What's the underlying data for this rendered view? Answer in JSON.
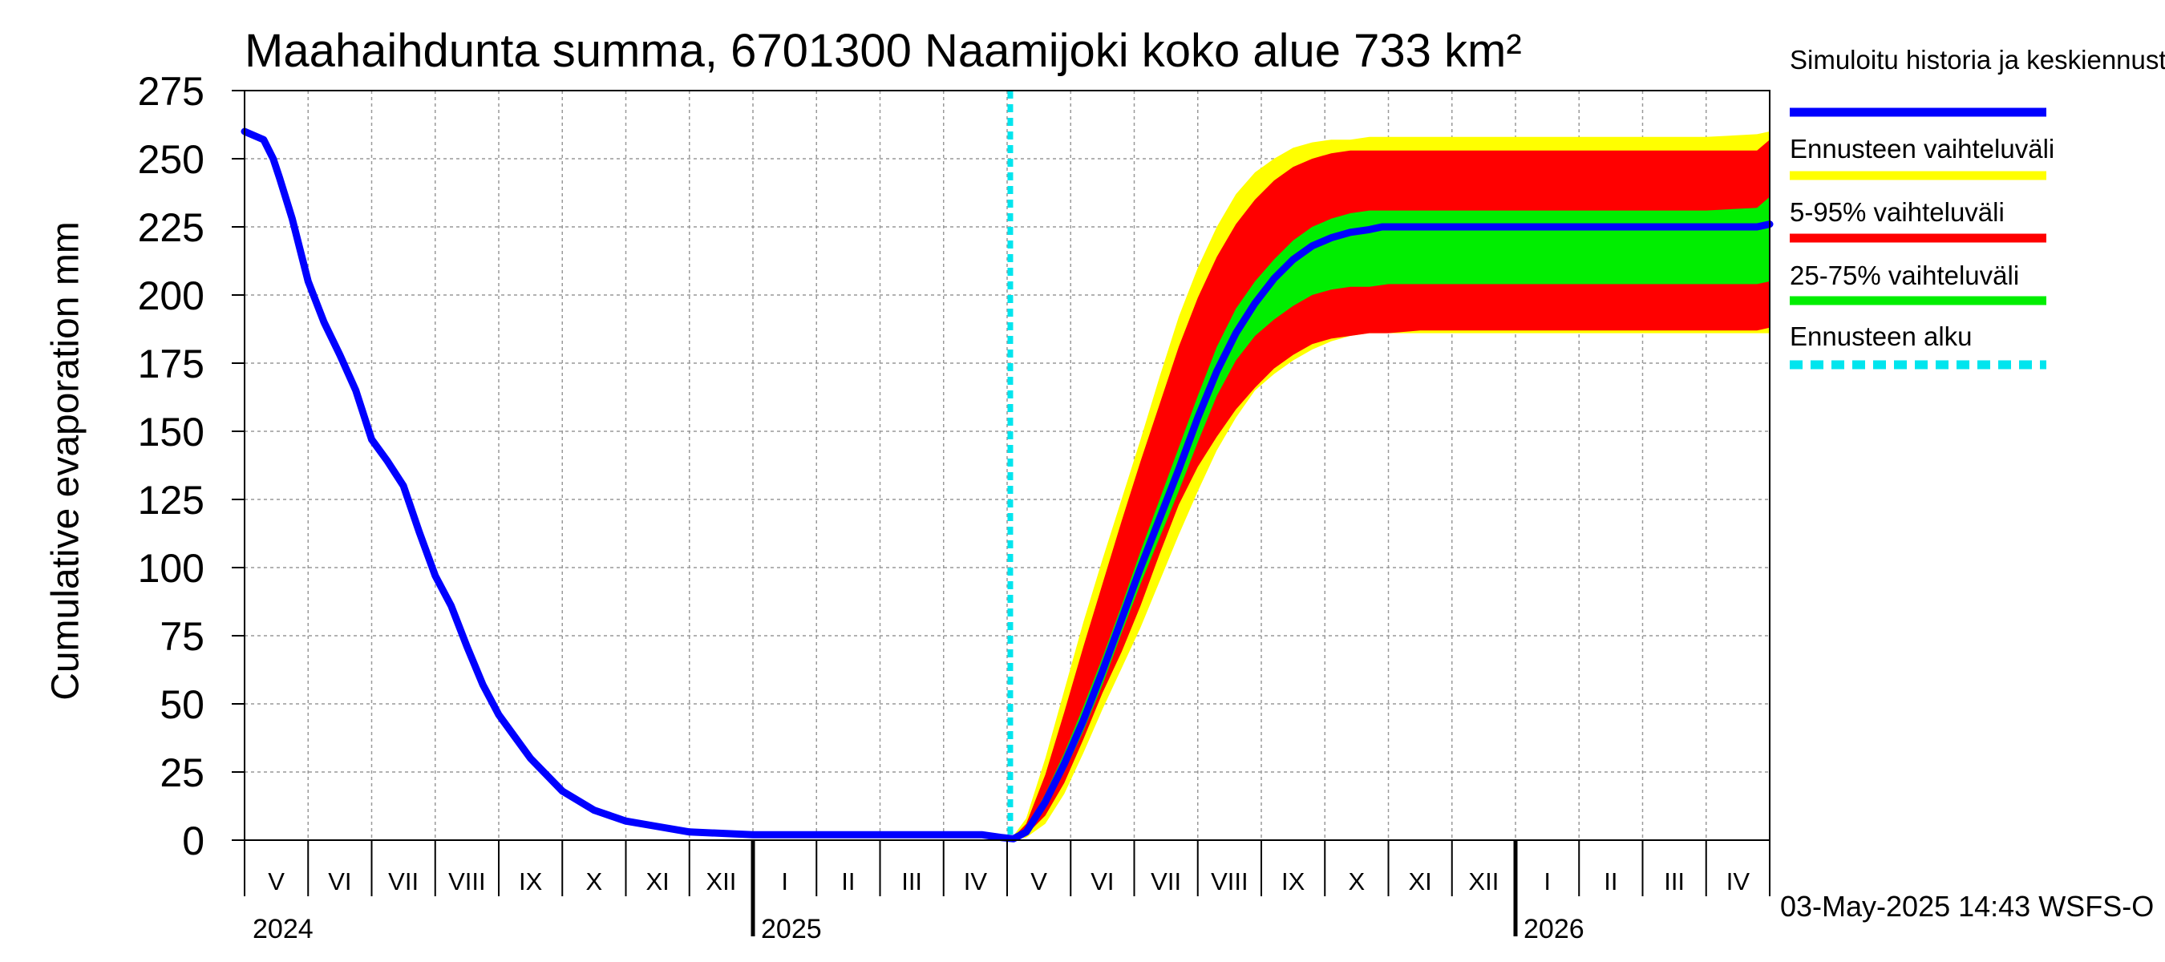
{
  "chart_data": {
    "type": "area",
    "title": "Maahaihdunta summa, 6701300 Naamijoki koko alue 733 km²",
    "ylabel": "Cumulative evaporation   mm",
    "xlabel": "",
    "ylim": [
      0,
      275
    ],
    "yticks": [
      0,
      25,
      50,
      75,
      100,
      125,
      150,
      175,
      200,
      225,
      250,
      275
    ],
    "grid": true,
    "x_unit": "month index (0 = start of May 2024)",
    "xlim": [
      0,
      24
    ],
    "month_labels": [
      "V",
      "VI",
      "VII",
      "VIII",
      "IX",
      "X",
      "XI",
      "XII",
      "I",
      "II",
      "III",
      "IV",
      "V",
      "VI",
      "VII",
      "VIII",
      "IX",
      "X",
      "XI",
      "XII",
      "I",
      "II",
      "III",
      "IV"
    ],
    "year_labels": [
      {
        "label": "2024",
        "month_index": 0
      },
      {
        "label": "2025",
        "month_index": 8
      },
      {
        "label": "2026",
        "month_index": 20
      }
    ],
    "forecast_start": 12.05,
    "series": [
      {
        "name": "Simuloitu historia ja keskiennuste",
        "kind": "line",
        "x": [
          0,
          0.3,
          0.45,
          0.55,
          0.75,
          1.0,
          1.25,
          1.5,
          1.75,
          2.0,
          2.25,
          2.5,
          2.75,
          3.0,
          3.25,
          3.5,
          3.75,
          4.0,
          4.25,
          4.5,
          5.0,
          5.5,
          6.0,
          6.5,
          7.0,
          8.0,
          9.0,
          10.0,
          11.0,
          11.6,
          11.9,
          12.1,
          12.3,
          12.6,
          12.9,
          13.2,
          13.5,
          13.8,
          14.1,
          14.4,
          14.7,
          15.0,
          15.3,
          15.6,
          15.9,
          16.2,
          16.5,
          16.8,
          17.1,
          17.4,
          17.7,
          17.9,
          18.2,
          19.0,
          20.0,
          22.0,
          23.5,
          23.8,
          24.0
        ],
        "values": [
          260,
          257,
          250,
          243,
          228,
          205,
          190,
          178,
          165,
          147,
          139,
          130,
          113,
          97,
          86,
          71,
          57,
          46,
          38,
          30,
          18,
          11,
          7,
          5,
          3,
          2,
          2,
          2,
          2,
          2,
          1,
          0.5,
          3,
          14,
          28,
          44,
          62,
          81,
          100,
          118,
          136,
          155,
          172,
          186,
          197,
          206,
          213,
          218,
          221,
          223,
          224,
          225,
          225,
          225,
          225,
          225,
          225,
          225,
          226
        ],
        "color": "#0000ff"
      },
      {
        "name": "Ennusteen vaihteluväli",
        "kind": "band",
        "x": [
          12.05,
          12.3,
          12.6,
          12.9,
          13.2,
          13.5,
          13.8,
          14.1,
          14.4,
          14.7,
          15.0,
          15.3,
          15.6,
          15.9,
          16.2,
          16.5,
          16.8,
          17.1,
          17.4,
          17.7,
          18.0,
          18.5,
          19.0,
          20.0,
          21.0,
          22.0,
          23.0,
          23.8,
          24.0
        ],
        "low": [
          0,
          1,
          6,
          17,
          32,
          48,
          63,
          78,
          95,
          112,
          128,
          143,
          155,
          165,
          171,
          176,
          180,
          183,
          185,
          186,
          186,
          186,
          186,
          186,
          186,
          186,
          186,
          186,
          186
        ],
        "high": [
          0,
          8,
          30,
          55,
          80,
          103,
          125,
          147,
          170,
          192,
          210,
          225,
          237,
          245,
          250,
          254,
          256,
          257,
          257,
          258,
          258,
          258,
          258,
          258,
          258,
          258,
          258,
          259,
          260
        ],
        "color": "#ffff00"
      },
      {
        "name": "5-95% vaihteluväli",
        "kind": "band",
        "x": [
          12.05,
          12.3,
          12.6,
          12.9,
          13.2,
          13.5,
          13.8,
          14.1,
          14.4,
          14.7,
          15.0,
          15.3,
          15.6,
          15.9,
          16.2,
          16.5,
          16.8,
          17.1,
          17.4,
          17.7,
          18.0,
          18.5,
          19.0,
          20.0,
          21.0,
          22.0,
          23.0,
          23.8,
          24.0
        ],
        "low": [
          0,
          2,
          9,
          21,
          37,
          54,
          69,
          86,
          105,
          123,
          137,
          148,
          158,
          166,
          173,
          178,
          182,
          184,
          185,
          186,
          186,
          187,
          187,
          187,
          187,
          187,
          187,
          187,
          188
        ],
        "high": [
          0,
          6,
          24,
          47,
          71,
          94,
          117,
          139,
          160,
          181,
          199,
          214,
          226,
          235,
          242,
          247,
          250,
          252,
          253,
          253,
          253,
          253,
          253,
          253,
          253,
          253,
          253,
          253,
          257
        ],
        "color": "#ff0000"
      },
      {
        "name": "25-75% vaihteluväli",
        "kind": "band",
        "x": [
          12.05,
          12.3,
          12.6,
          12.9,
          13.2,
          13.5,
          13.8,
          14.1,
          14.4,
          14.7,
          15.0,
          15.3,
          15.6,
          15.9,
          16.2,
          16.5,
          16.8,
          17.1,
          17.4,
          17.7,
          18.0,
          18.5,
          19.0,
          20.0,
          21.0,
          22.0,
          23.0,
          23.8,
          24.0
        ],
        "low": [
          0,
          2,
          12,
          25,
          40,
          57,
          76,
          94,
          111,
          128,
          146,
          163,
          176,
          185,
          191,
          196,
          200,
          202,
          203,
          203,
          204,
          204,
          204,
          204,
          204,
          204,
          204,
          204,
          205
        ],
        "high": [
          0,
          4,
          17,
          32,
          49,
          67,
          86,
          106,
          125,
          144,
          163,
          181,
          195,
          205,
          213,
          220,
          225,
          228,
          230,
          231,
          231,
          231,
          231,
          231,
          231,
          231,
          231,
          232,
          236
        ],
        "color": "#00ee00"
      },
      {
        "name": "Ennusteen alku",
        "kind": "vline",
        "color": "#00e5ee"
      }
    ]
  },
  "legend": [
    {
      "label": "Simuloitu historia ja keskiennuste",
      "color": "#0000ff",
      "style": "solid"
    },
    {
      "label": "Ennusteen vaihteluväli",
      "color": "#ffff00",
      "style": "solid"
    },
    {
      "label": "5-95% vaihteluväli",
      "color": "#ff0000",
      "style": "solid"
    },
    {
      "label": "25-75% vaihteluväli",
      "color": "#00ee00",
      "style": "solid"
    },
    {
      "label": "Ennusteen alku",
      "color": "#00e5ee",
      "style": "dashed"
    }
  ],
  "footer": "03-May-2025 14:43 WSFS-O"
}
